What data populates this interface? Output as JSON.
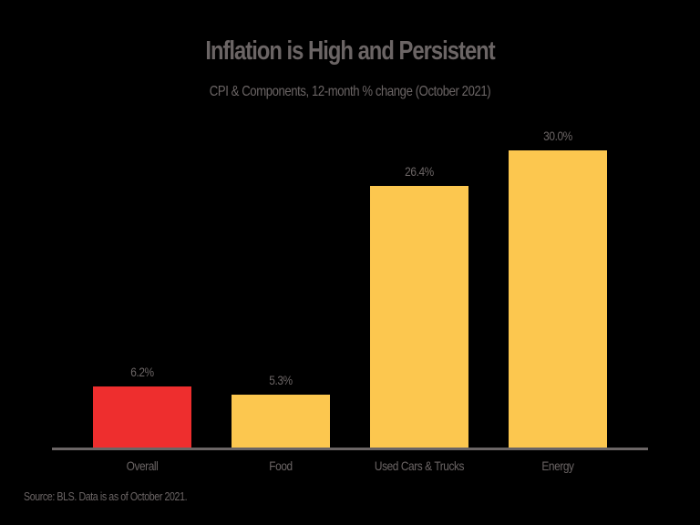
{
  "chart_data": {
    "type": "bar",
    "title": "Inflation is High and Persistent",
    "subtitle": "CPI & Components, 12-month % change (October 2021)",
    "categories": [
      "Overall",
      "Food",
      "Used Cars & Trucks",
      "Energy"
    ],
    "values": [
      6.2,
      5.3,
      26.4,
      30.0
    ],
    "value_labels": [
      "6.2%",
      "5.3%",
      "26.4%",
      "30.0%"
    ],
    "colors": [
      "#ee2e2e",
      "#fcc74f",
      "#fcc74f",
      "#fcc74f"
    ],
    "xlabel": "",
    "ylabel": "",
    "ylim": [
      0,
      30
    ],
    "grid": false,
    "legend": null,
    "source": "Source: BLS. Data is as of October 2021."
  },
  "colors": {
    "background": "#000000",
    "text": "#6b6565",
    "axis": "#6b6565",
    "highlight": "#ee2e2e",
    "bar": "#fcc74f"
  }
}
